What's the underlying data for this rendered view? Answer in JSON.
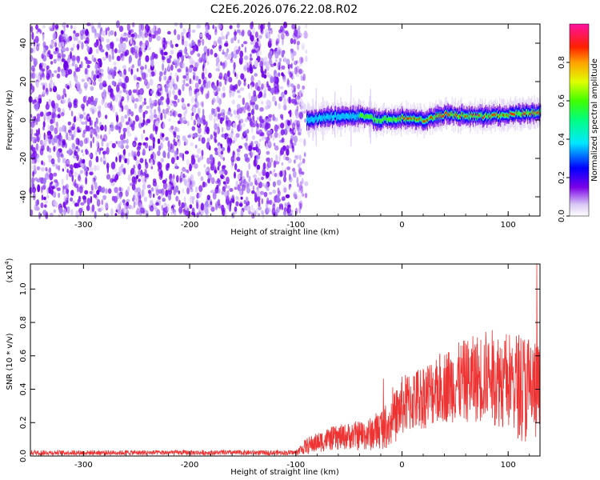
{
  "title": "C2E6.2026.076.22.08.R02",
  "chart_data": [
    {
      "type": "heatmap",
      "name": "spectrogram",
      "xlabel": "Height of straight line (km)",
      "ylabel": "Frequency (Hz)",
      "xlim": [
        -350,
        130
      ],
      "ylim": [
        -50,
        50
      ],
      "x_ticks": [
        -300,
        -200,
        -100,
        0,
        100
      ],
      "y_ticks": [
        -40,
        -20,
        0,
        20,
        40
      ],
      "x_tick_labels": [
        "-300",
        "-200",
        "-100",
        "0",
        "100"
      ],
      "y_tick_labels": [
        "-40",
        "-20",
        "0",
        "20",
        "40"
      ],
      "noise_region_x": [
        -350,
        -90
      ],
      "signal_region_x": [
        -90,
        130
      ],
      "signal_center_hz": [
        [
          -90,
          0
        ],
        [
          -80,
          1
        ],
        [
          -60,
          2
        ],
        [
          -40,
          2
        ],
        [
          -20,
          0
        ],
        [
          0,
          1
        ],
        [
          20,
          0
        ],
        [
          40,
          3
        ],
        [
          60,
          2
        ],
        [
          80,
          2
        ],
        [
          100,
          3
        ],
        [
          130,
          4
        ]
      ],
      "colorbar": {
        "label": "Normalized spectral amplitude",
        "range": [
          0,
          1
        ],
        "ticks": [
          0.0,
          0.2,
          0.4,
          0.6,
          0.8
        ],
        "tick_labels": [
          "0.0",
          "0.2",
          "0.4",
          "0.6",
          "0.8"
        ]
      }
    },
    {
      "type": "line",
      "name": "snr",
      "xlabel": "Height of straight line (km)",
      "ylabel": "SNR (10 * v/v)",
      "scale_label": "(x10",
      "scale_exponent": "4",
      "scale_suffix": ")",
      "xlim": [
        -350,
        130
      ],
      "ylim": [
        0,
        1.15
      ],
      "x_ticks": [
        -300,
        -200,
        -100,
        0,
        100
      ],
      "y_ticks": [
        0.0,
        0.2,
        0.4,
        0.6,
        0.8,
        1.0
      ],
      "x_tick_labels": [
        "-300",
        "-200",
        "-100",
        "0",
        "100"
      ],
      "y_tick_labels": [
        "0.0",
        "0.2",
        "0.4",
        "0.6",
        "0.8",
        "1.0"
      ],
      "color": "#ee3333",
      "envelope_x": [
        -350,
        -100,
        -90,
        -70,
        -50,
        -30,
        -10,
        0,
        20,
        40,
        60,
        80,
        100,
        120,
        130
      ],
      "envelope_mean": [
        0.02,
        0.02,
        0.06,
        0.1,
        0.12,
        0.13,
        0.2,
        0.3,
        0.36,
        0.42,
        0.45,
        0.48,
        0.45,
        0.4,
        0.38
      ],
      "envelope_spread": [
        0.015,
        0.015,
        0.05,
        0.07,
        0.08,
        0.1,
        0.15,
        0.18,
        0.2,
        0.22,
        0.25,
        0.28,
        0.3,
        0.35,
        0.3
      ],
      "peak_value": 1.15,
      "peak_x": 127
    }
  ]
}
